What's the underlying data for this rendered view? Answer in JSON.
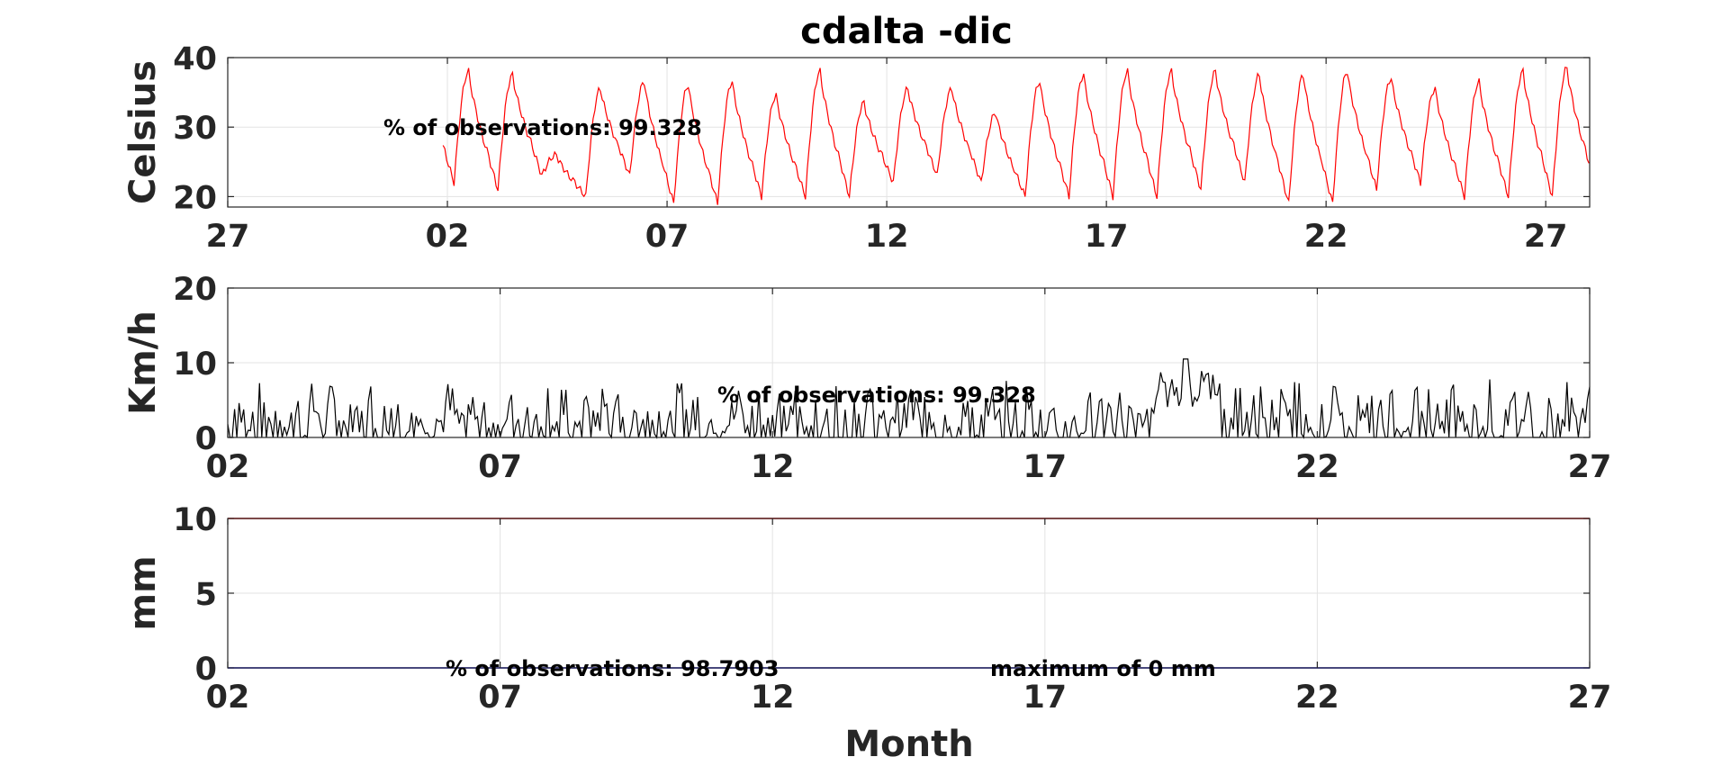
{
  "figure": {
    "title": "cdalta -dic",
    "xlabel": "Month"
  },
  "chart_data": [
    {
      "type": "line",
      "name": "temperature",
      "ylabel": "Celsius",
      "ylim": [
        18.5,
        40
      ],
      "yticks": [
        20,
        30,
        40
      ],
      "xlim": [
        0,
        31
      ],
      "xticks": [
        0,
        5,
        10,
        15,
        20,
        25,
        30,
        35
      ],
      "xticklabels": [
        "27",
        "02",
        "07",
        "12",
        "17",
        "22",
        "27",
        "01"
      ],
      "grid": true,
      "color": "#ff0000",
      "annotation": "% of observations: 99.328",
      "daily": [
        {
          "day": 1,
          "min": 22,
          "max": 38
        },
        {
          "day": 2,
          "min": 21,
          "max": 37.5
        },
        {
          "day": 3,
          "min": 23,
          "max": 26
        },
        {
          "day": 4,
          "min": 20,
          "max": 35.5
        },
        {
          "day": 5,
          "min": 23,
          "max": 36.5
        },
        {
          "day": 6,
          "min": 19,
          "max": 36
        },
        {
          "day": 7,
          "min": 19,
          "max": 36.5
        },
        {
          "day": 8,
          "min": 20,
          "max": 34.5
        },
        {
          "day": 9,
          "min": 20,
          "max": 38
        },
        {
          "day": 10,
          "min": 20,
          "max": 33.5
        },
        {
          "day": 11,
          "min": 22,
          "max": 35.5
        },
        {
          "day": 12,
          "min": 23,
          "max": 35.5
        },
        {
          "day": 13,
          "min": 22,
          "max": 32
        },
        {
          "day": 14,
          "min": 20,
          "max": 36.5
        },
        {
          "day": 15,
          "min": 20,
          "max": 37.5
        },
        {
          "day": 16,
          "min": 20,
          "max": 38
        },
        {
          "day": 17,
          "min": 20,
          "max": 38
        },
        {
          "day": 18,
          "min": 21,
          "max": 38
        },
        {
          "day": 19,
          "min": 22,
          "max": 37.5
        },
        {
          "day": 20,
          "min": 19,
          "max": 37.5
        },
        {
          "day": 21,
          "min": 19,
          "max": 38
        },
        {
          "day": 22,
          "min": 21,
          "max": 37
        },
        {
          "day": 23,
          "min": 22,
          "max": 35.5
        },
        {
          "day": 24,
          "min": 20,
          "max": 36.5
        },
        {
          "day": 25,
          "min": 20,
          "max": 38
        },
        {
          "day": 26,
          "min": 20,
          "max": 38.5
        },
        {
          "day": 27,
          "min": 21,
          "max": 38
        },
        {
          "day": 28,
          "min": 20,
          "max": 37
        },
        {
          "day": 29,
          "min": 21,
          "max": 37
        },
        {
          "day": 30,
          "min": 21,
          "max": 39
        },
        {
          "day": 31,
          "min": 22,
          "max": 37.5
        }
      ]
    },
    {
      "type": "line",
      "name": "wind",
      "ylabel": "Km/h",
      "ylim": [
        0,
        20
      ],
      "yticks": [
        0,
        10,
        20
      ],
      "xlim": [
        2,
        27
      ],
      "xticks": [
        2,
        7,
        12,
        17,
        22,
        27
      ],
      "xticklabels": [
        "02",
        "07",
        "12",
        "17",
        "22",
        "27"
      ],
      "grid": true,
      "color": "#000000",
      "annotation": "% of observations: 99.328",
      "typical_range": [
        0,
        8
      ],
      "peak": {
        "x": 19.6,
        "y": 10.5
      }
    },
    {
      "type": "line",
      "name": "precipitation",
      "ylabel": "mm",
      "ylim": [
        0,
        10
      ],
      "yticks": [
        0,
        5,
        10
      ],
      "xlim": [
        2,
        27
      ],
      "xticks": [
        2,
        7,
        12,
        17,
        22,
        27
      ],
      "xticklabels": [
        "02",
        "07",
        "12",
        "17",
        "22",
        "27"
      ],
      "grid": true,
      "series": [
        {
          "color": "#ff0000",
          "value": 10
        },
        {
          "color": "#0000ff",
          "value": 0
        }
      ],
      "annotations": [
        "% of observations: 98.7903",
        "maximum of 0 mm"
      ]
    }
  ]
}
